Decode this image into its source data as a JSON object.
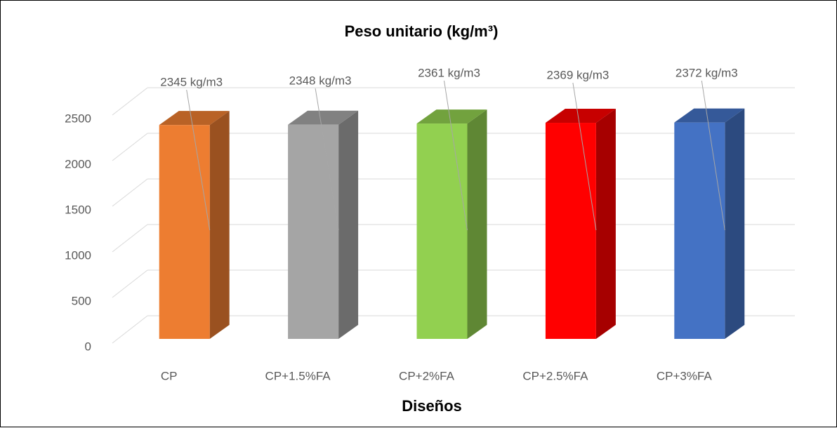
{
  "chart_data": {
    "type": "bar3d",
    "title": "Peso unitario (kg/m³)",
    "x_label": "Diseños",
    "categories": [
      "CP",
      "CP+1.5%FA",
      "CP+2%FA",
      "CP+2.5%FA",
      "CP+3%FA"
    ],
    "values": [
      2345,
      2348,
      2361,
      2369,
      2372
    ],
    "value_labels": [
      "2345 kg/m3",
      "2348 kg/m3",
      "2361 kg/m3",
      "2369 kg/m3",
      "2372 kg/m3"
    ],
    "colors": [
      "#ed7d31",
      "#a5a5a5",
      "#92d050",
      "#ff0000",
      "#4472c4"
    ],
    "ylim": [
      0,
      2500
    ],
    "yticks": [
      0,
      500,
      1000,
      1500,
      2000,
      2500
    ],
    "grid": true
  }
}
